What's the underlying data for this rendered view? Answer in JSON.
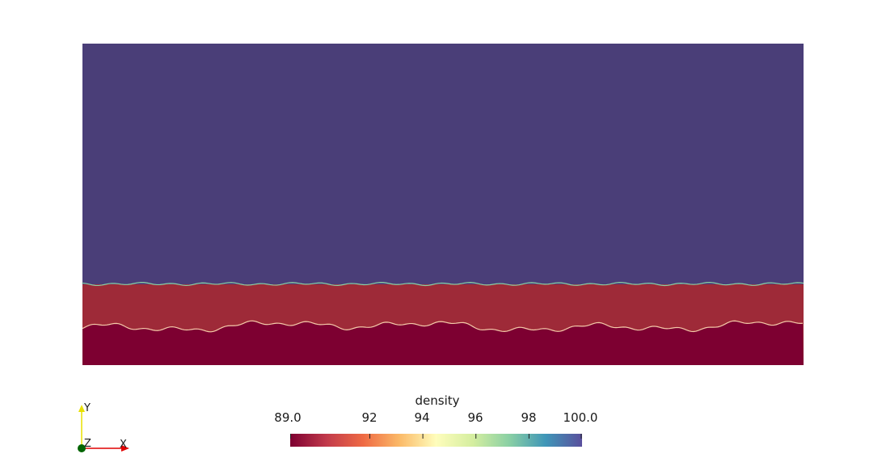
{
  "colorbar": {
    "title": "density",
    "range": [
      89.0,
      100.0
    ],
    "ticks": [
      {
        "value": 89.0,
        "label": "89.0"
      },
      {
        "value": 92,
        "label": "92"
      },
      {
        "value": 94,
        "label": "94"
      },
      {
        "value": 96,
        "label": "96"
      },
      {
        "value": 98,
        "label": "98"
      },
      {
        "value": 100.0,
        "label": "100.0"
      }
    ],
    "colormap": [
      "#7d0031",
      "#c23a4b",
      "#ef6a44",
      "#fbba68",
      "#fefdbc",
      "#d5eea0",
      "#8ad0a4",
      "#3f96b8",
      "#5a4f9d"
    ]
  },
  "field": {
    "upper_region_color": "#4a3e78",
    "middle_region_color": "#9e2a38",
    "lower_region_color": "#7d0031"
  },
  "orientation_axes": {
    "x_label": "X",
    "y_label": "Y",
    "z_label": "Z",
    "x_color": "#e00000",
    "y_color": "#e8e000",
    "z_color": "#006400"
  }
}
